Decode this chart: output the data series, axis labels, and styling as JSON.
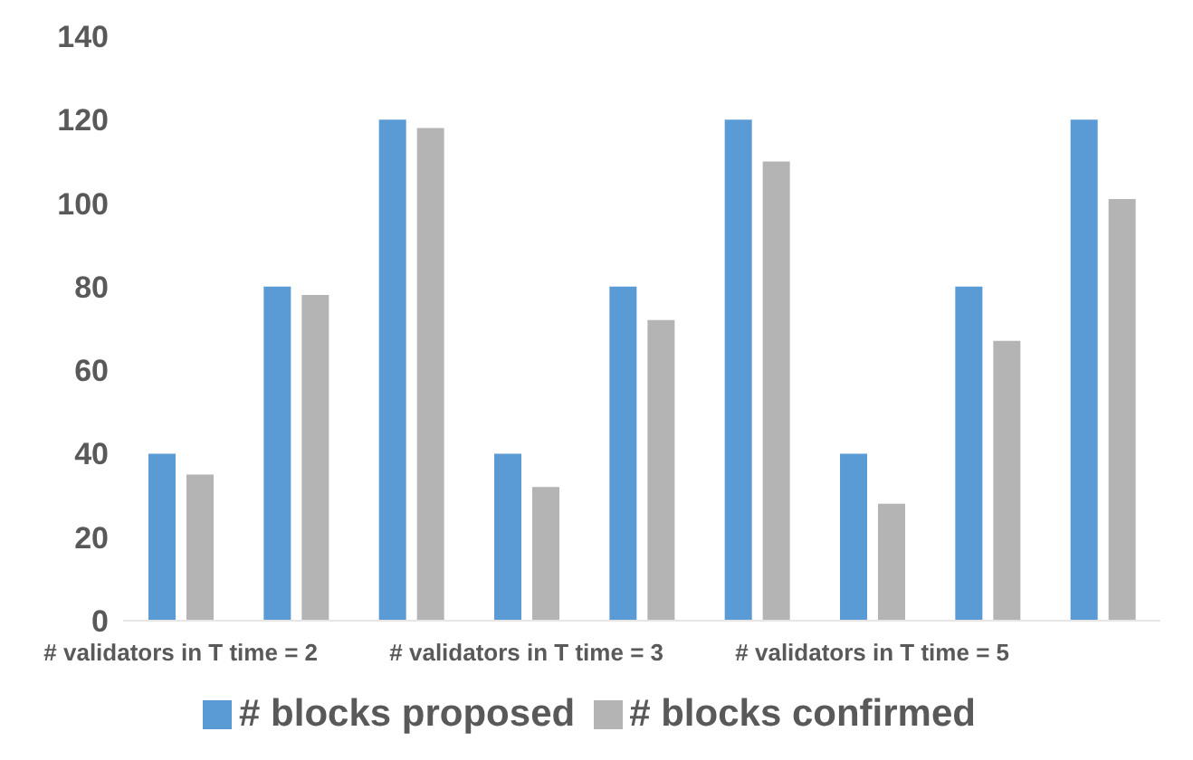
{
  "chart_data": {
    "type": "bar",
    "categories": [
      "# validators in T time = 2",
      null,
      null,
      "# validators in T time = 3",
      null,
      null,
      "# validators in T time = 5",
      null,
      null
    ],
    "series": [
      {
        "name": "# blocks proposed",
        "color": "#5b9bd5",
        "values": [
          40,
          80,
          120,
          40,
          80,
          120,
          40,
          80,
          120
        ]
      },
      {
        "name": "# blocks confirmed",
        "color": "#b4b4b4",
        "values": [
          35,
          78,
          118,
          32,
          72,
          110,
          28,
          67,
          101
        ]
      }
    ],
    "ylim": [
      0,
      140
    ],
    "yticks": [
      0,
      20,
      40,
      60,
      80,
      100,
      120,
      140
    ],
    "grid": false,
    "legend": "bottom"
  }
}
